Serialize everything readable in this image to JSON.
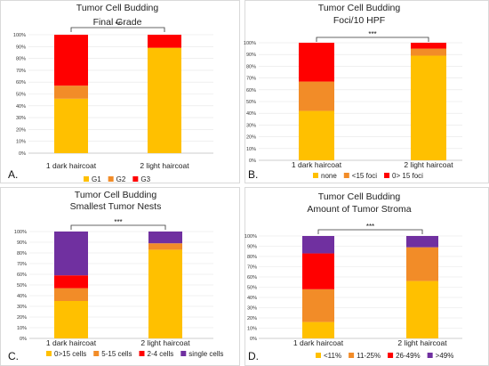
{
  "chart_data": [
    {
      "type": "bar",
      "panel_label": "A.",
      "title": "Tumor Cell Budding",
      "subtitle": "Final Grade",
      "categories": [
        "1 dark haircoat",
        "2 light haircoat"
      ],
      "series": [
        {
          "name": "G1",
          "color": "#FFC000",
          "values": [
            46,
            89
          ]
        },
        {
          "name": "G2",
          "color": "#F28C28",
          "values": [
            11,
            0
          ]
        },
        {
          "name": "G3",
          "color": "#FF0000",
          "values": [
            43,
            11
          ]
        }
      ],
      "ylim": [
        0,
        100
      ],
      "yticks": [
        "0%",
        "10%",
        "20%",
        "30%",
        "40%",
        "50%",
        "60%",
        "70%",
        "80%",
        "90%",
        "100%"
      ],
      "significance": "**",
      "stacked": true
    },
    {
      "type": "bar",
      "panel_label": "B.",
      "title": "Tumor Cell Budding",
      "subtitle": "Foci/10 HPF",
      "categories": [
        "1 dark haircoat",
        "2 light haircoat"
      ],
      "series": [
        {
          "name": "none",
          "color": "#FFC000",
          "values": [
            42,
            89
          ]
        },
        {
          "name": "<15 foci",
          "color": "#F28C28",
          "values": [
            25,
            6
          ]
        },
        {
          "name": "0> 15 foci",
          "color": "#FF0000",
          "values": [
            33,
            5
          ]
        }
      ],
      "ylim": [
        0,
        100
      ],
      "yticks": [
        "0%",
        "10%",
        "20%",
        "30%",
        "40%",
        "50%",
        "60%",
        "70%",
        "80%",
        "90%",
        "100%"
      ],
      "significance": "***",
      "stacked": true
    },
    {
      "type": "bar",
      "panel_label": "C.",
      "title": "Tumor Cell Budding",
      "subtitle": "Smallest Tumor Nests",
      "categories": [
        "1 dark haircoat",
        "2 light haircoat"
      ],
      "series": [
        {
          "name": "0>15 cells",
          "color": "#FFC000",
          "values": [
            35,
            83
          ]
        },
        {
          "name": "5-15 cells",
          "color": "#F28C28",
          "values": [
            12,
            6
          ]
        },
        {
          "name": "2-4 cells",
          "color": "#FF0000",
          "values": [
            12,
            0
          ]
        },
        {
          "name": "single cells",
          "color": "#7030A0",
          "values": [
            41,
            11
          ]
        }
      ],
      "ylim": [
        0,
        100
      ],
      "yticks": [
        "0%",
        "10%",
        "20%",
        "30%",
        "40%",
        "50%",
        "60%",
        "70%",
        "80%",
        "90%",
        "100%"
      ],
      "significance": "***",
      "stacked": true
    },
    {
      "type": "bar",
      "panel_label": "D.",
      "title": "Tumor Cell Budding",
      "subtitle": "Amount of Tumor Stroma",
      "categories": [
        "1 dark haircoat",
        "2 light haircoat"
      ],
      "series": [
        {
          "name": "<11%",
          "color": "#FFC000",
          "values": [
            16,
            56
          ]
        },
        {
          "name": "11-25%",
          "color": "#F28C28",
          "values": [
            32,
            33
          ]
        },
        {
          "name": "26-49%",
          "color": "#FF0000",
          "values": [
            35,
            0
          ]
        },
        {
          "name": ">49%",
          "color": "#7030A0",
          "values": [
            17,
            11
          ]
        }
      ],
      "ylim": [
        0,
        100
      ],
      "yticks": [
        "0%",
        "10%",
        "20%",
        "30%",
        "40%",
        "50%",
        "60%",
        "70%",
        "80%",
        "90%",
        "100%"
      ],
      "significance": "***",
      "stacked": true
    }
  ]
}
